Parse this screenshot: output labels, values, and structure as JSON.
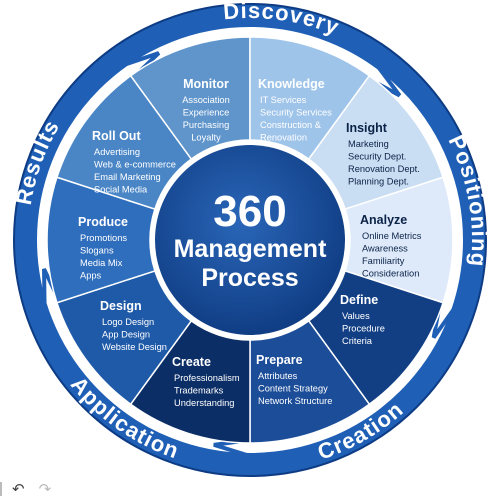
{
  "center": {
    "line1": "360",
    "line2": "Management",
    "line3": "Process"
  },
  "phases": [
    {
      "label": "Discovery"
    },
    {
      "label": "Positioning"
    },
    {
      "label": "Creation"
    },
    {
      "label": "Application"
    },
    {
      "label": "Results"
    }
  ],
  "segments": [
    {
      "title": "Monitor",
      "items": [
        "Association",
        "Experience",
        "Purchasing",
        "Loyalty"
      ],
      "color": "#5f95cb"
    },
    {
      "title": "Knowledge",
      "items": [
        "IT Services",
        "Security Services",
        "Construction &",
        "Renovation"
      ],
      "color": "#9fc4ea"
    },
    {
      "title": "Insight",
      "items": [
        "Marketing",
        "Security Dept.",
        "Renovation Dept.",
        "Planning Dept."
      ],
      "color": "#c9ddf3"
    },
    {
      "title": "Analyze",
      "items": [
        "Online Metrics",
        "Awareness",
        "Familiarity",
        "Consideration"
      ],
      "color": "#deeafa"
    },
    {
      "title": "Define",
      "items": [
        "Values",
        "Procedure",
        "Criteria"
      ],
      "color": "#123f84"
    },
    {
      "title": "Prepare",
      "items": [
        "Attributes",
        "Content Strategy",
        "Network Structure"
      ],
      "color": "#1c4d98"
    },
    {
      "title": "Create",
      "items": [
        "Professionalism",
        "Trademarks",
        "Understanding"
      ],
      "color": "#0b2e66"
    },
    {
      "title": "Design",
      "items": [
        "Logo Design",
        "App Design",
        "Website Design"
      ],
      "color": "#1e5aa8"
    },
    {
      "title": "Produce",
      "items": [
        "Promotions",
        "Slogans",
        "Media Mix",
        "Apps"
      ],
      "color": "#2f6ebd"
    },
    {
      "title": "Roll Out",
      "items": [
        "Advertising",
        "Web & e-commerce",
        "Email Marketing",
        "Social Media"
      ],
      "color": "#4a86c6"
    }
  ],
  "toolbar": {
    "undo_icon": "undo-icon",
    "redo_icon": "redo-icon",
    "undo_glyph": "↶",
    "redo_glyph": "↷"
  },
  "colors": {
    "outer_ring": "#1f5fb5",
    "ring_edge": "#0d3c85",
    "white_gap": "#ffffff",
    "center": "#134a9c",
    "center_edge": "#0e3a80",
    "ring_text": "#ffffff"
  }
}
